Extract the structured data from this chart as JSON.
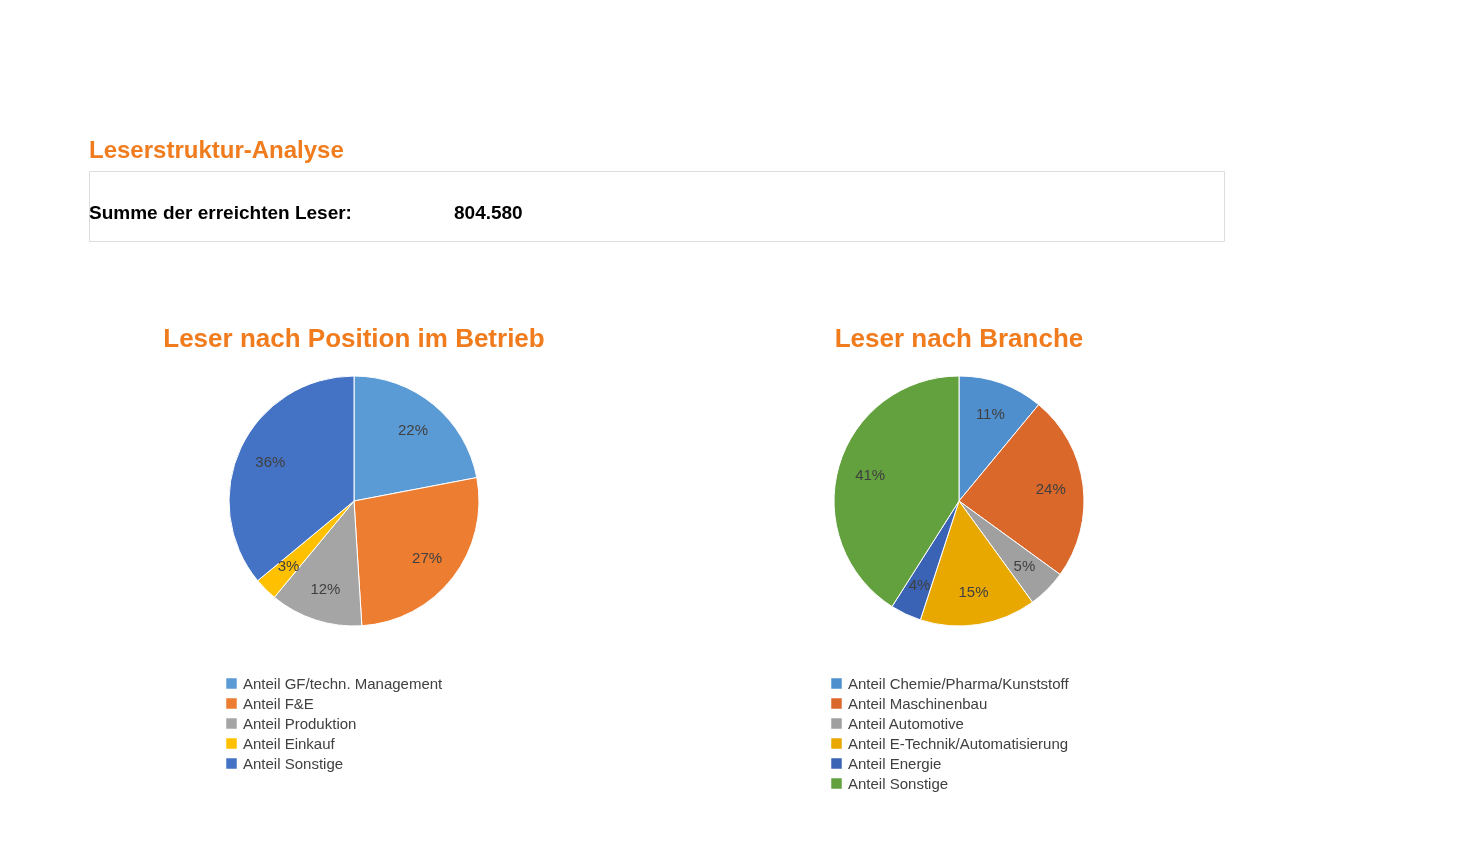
{
  "chart_data": [
    {
      "type": "other",
      "title": "Leserstruktur-Analyse",
      "annotations": [
        "Summe der erreichten Leser:",
        "804.580"
      ]
    },
    {
      "type": "pie",
      "title": "Leser nach Position im Betrieb",
      "categories": [
        "Anteil GF/techn. Management",
        "Anteil F&E",
        "Anteil Produktion",
        "Anteil Einkauf",
        "Anteil Sonstige"
      ],
      "values": [
        22,
        27,
        12,
        3,
        36
      ],
      "colors": [
        "#5b9bd5",
        "#ed7d31",
        "#a5a5a5",
        "#ffc000",
        "#4472c4"
      ],
      "value_labels": [
        "22%",
        "27%",
        "12%",
        "3%",
        "36%"
      ],
      "legend": "bottom"
    },
    {
      "type": "pie",
      "title": "Leser nach Branche",
      "categories": [
        "Anteil Chemie/Pharma/Kunststoff",
        "Anteil Maschinenbau",
        "Anteil Automotive",
        "Anteil E-Technik/Automatisierung",
        "Anteil Energie",
        "Anteil Sonstige"
      ],
      "values": [
        11,
        24,
        5,
        15,
        4,
        41
      ],
      "colors": [
        "#4f8fce",
        "#d9682a",
        "#a0a0a0",
        "#e8a800",
        "#3a63b5",
        "#63a03e"
      ],
      "value_labels": [
        "11%",
        "24%",
        "5%",
        "15%",
        "4%",
        "41%"
      ],
      "legend": "bottom"
    }
  ]
}
